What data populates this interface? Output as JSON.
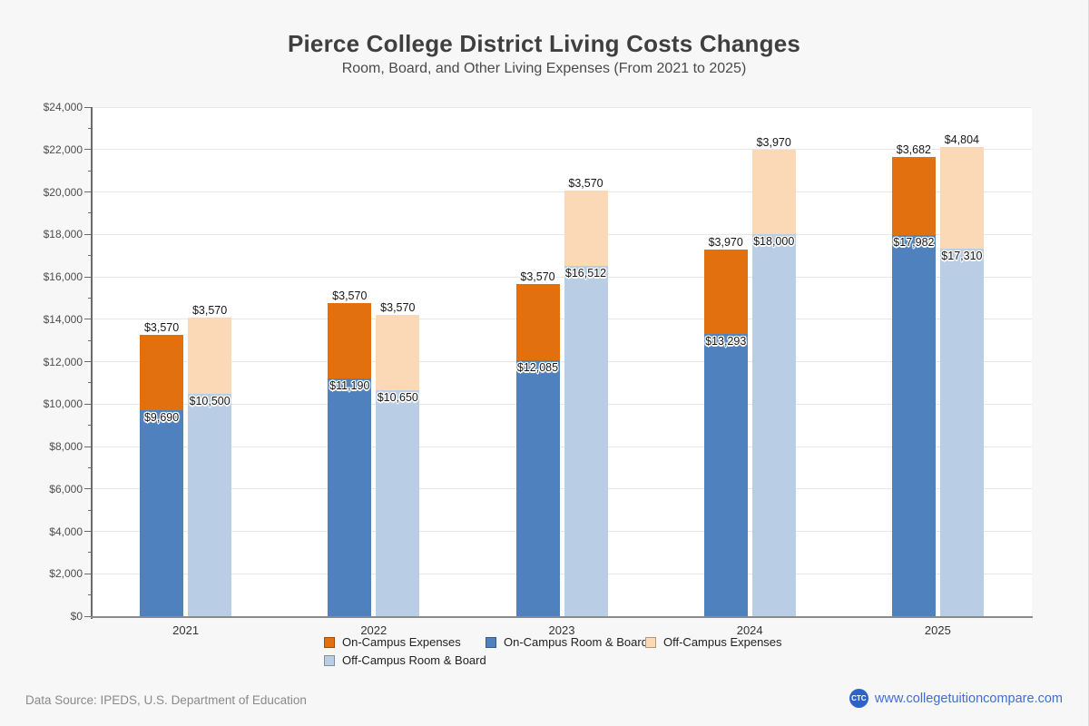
{
  "page": {
    "background_color": "#f7f7f8",
    "plot_background_color": "#ffffff"
  },
  "header": {
    "title": "Pierce College District Living Costs Changes",
    "subtitle": "Room, Board, and Other Living Expenses (From 2021 to 2025)"
  },
  "chart_data": {
    "type": "bar",
    "stacked": true,
    "title": "Pierce College District Living Costs Changes",
    "subtitle": "Room, Board, and Other Living Expenses (From 2021 to 2025)",
    "categories": [
      "2021",
      "2022",
      "2023",
      "2024",
      "2025"
    ],
    "ylim": [
      0,
      24000
    ],
    "ytick_interval": 2000,
    "ytick_minor_interval": 1000,
    "ytick_labels": [
      "$0",
      "$2,000",
      "$4,000",
      "$6,000",
      "$8,000",
      "$10,000",
      "$12,000",
      "$14,000",
      "$16,000",
      "$18,000",
      "$20,000",
      "$22,000",
      "$24,000"
    ],
    "grid": "horizontal",
    "currency_prefix": "$",
    "bars": [
      {
        "column": "On-Campus",
        "segments": [
          {
            "label": "On-Campus Room & Board",
            "color": "#4e81bd",
            "values": [
              9690,
              11190,
              12085,
              13293,
              17982
            ]
          },
          {
            "label": "On-Campus Expenses",
            "color": "#e2700e",
            "values": [
              3570,
              3570,
              3570,
              3970,
              3682
            ]
          }
        ]
      },
      {
        "column": "Off-Campus",
        "segments": [
          {
            "label": "Off-Campus Room & Board",
            "color": "#b9cde5",
            "values": [
              10500,
              10650,
              16512,
              18000,
              17310
            ]
          },
          {
            "label": "Off-Campus Expenses",
            "color": "#fcd9b6",
            "values": [
              3570,
              3570,
              3570,
              3970,
              4804
            ]
          }
        ]
      }
    ],
    "legend": {
      "position": "bottom",
      "items": [
        {
          "label": "On-Campus Expenses",
          "color": "#e2700e"
        },
        {
          "label": "On-Campus Room & Board",
          "color": "#4e81bd"
        },
        {
          "label": "Off-Campus Expenses",
          "color": "#fcd9b6"
        },
        {
          "label": "Off-Campus Room & Board",
          "color": "#b9cde5"
        }
      ]
    }
  },
  "footer": {
    "source": "Data Source: IPEDS, U.S. Department of Education",
    "logo_text": "CTC",
    "logo_color": "#2e62c8",
    "url": "www.collegetuitioncompare.com",
    "url_color": "#3e6fd0"
  }
}
